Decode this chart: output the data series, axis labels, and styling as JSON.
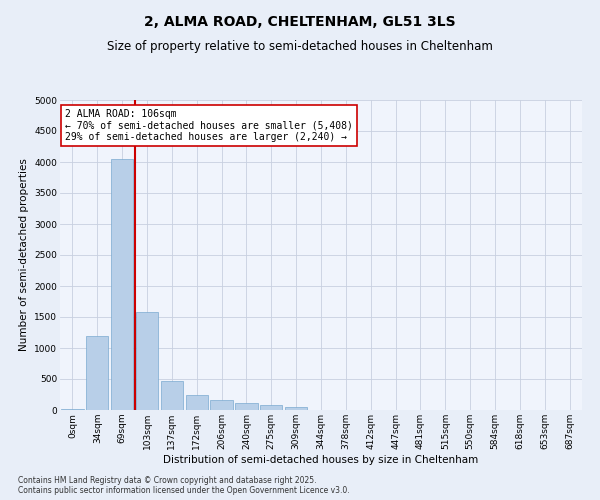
{
  "title": "2, ALMA ROAD, CHELTENHAM, GL51 3LS",
  "subtitle": "Size of property relative to semi-detached houses in Cheltenham",
  "xlabel": "Distribution of semi-detached houses by size in Cheltenham",
  "ylabel": "Number of semi-detached properties",
  "categories": [
    "0sqm",
    "34sqm",
    "69sqm",
    "103sqm",
    "137sqm",
    "172sqm",
    "206sqm",
    "240sqm",
    "275sqm",
    "309sqm",
    "344sqm",
    "378sqm",
    "412sqm",
    "447sqm",
    "481sqm",
    "515sqm",
    "550sqm",
    "584sqm",
    "618sqm",
    "653sqm",
    "687sqm"
  ],
  "values": [
    10,
    1200,
    4050,
    1580,
    470,
    235,
    165,
    120,
    80,
    50,
    0,
    0,
    0,
    0,
    0,
    0,
    0,
    0,
    0,
    0,
    0
  ],
  "bar_color": "#b8cfe8",
  "bar_edge_color": "#7aaad0",
  "vline_color": "#cc0000",
  "annotation_text": "2 ALMA ROAD: 106sqm\n← 70% of semi-detached houses are smaller (5,408)\n29% of semi-detached houses are larger (2,240) →",
  "annotation_box_color": "#ffffff",
  "annotation_border_color": "#cc0000",
  "ylim": [
    0,
    5000
  ],
  "yticks": [
    0,
    500,
    1000,
    1500,
    2000,
    2500,
    3000,
    3500,
    4000,
    4500,
    5000
  ],
  "footnote": "Contains HM Land Registry data © Crown copyright and database right 2025.\nContains public sector information licensed under the Open Government Licence v3.0.",
  "bg_color": "#e8eef8",
  "plot_bg_color": "#f0f4fc",
  "grid_color": "#c8d0e0",
  "title_fontsize": 10,
  "subtitle_fontsize": 8.5,
  "label_fontsize": 7.5,
  "tick_fontsize": 6.5,
  "annotation_fontsize": 7,
  "footnote_fontsize": 5.5
}
